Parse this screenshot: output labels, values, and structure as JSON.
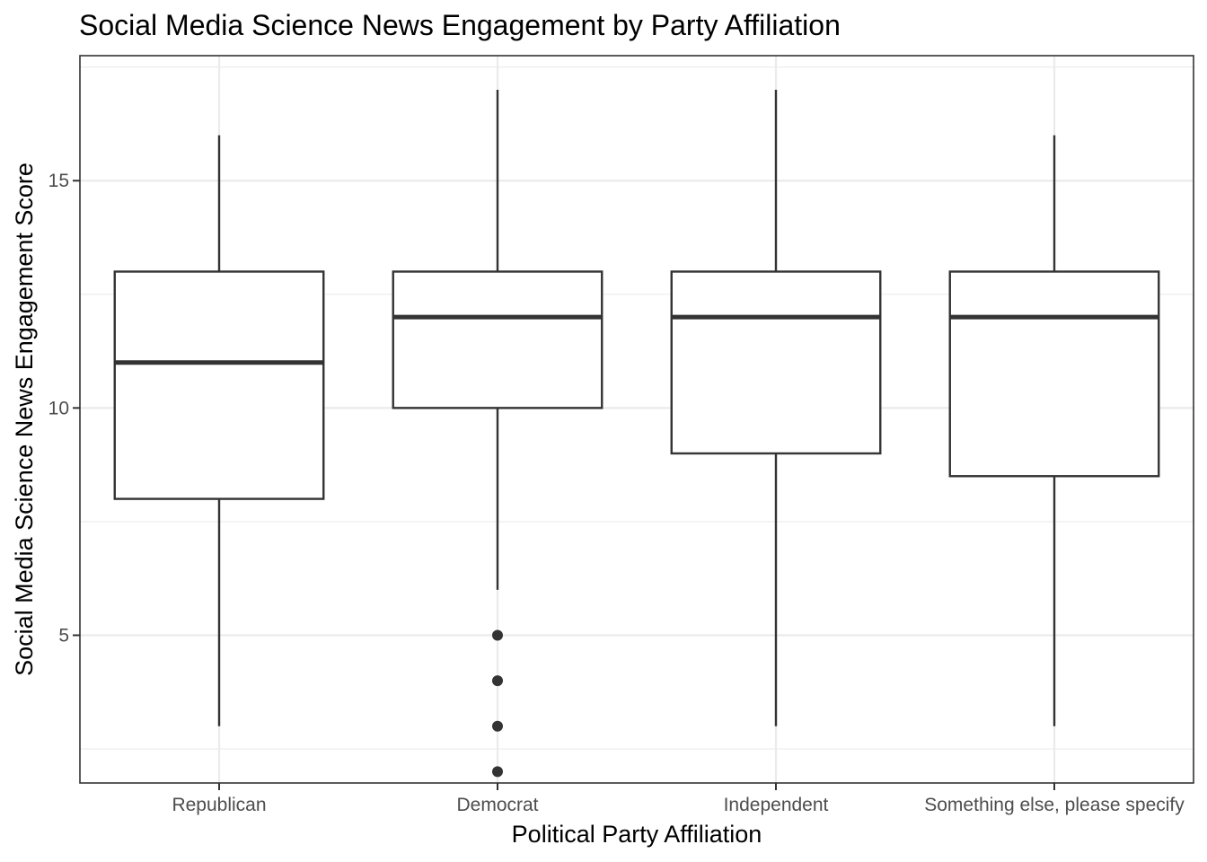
{
  "chart_data": {
    "type": "boxplot",
    "title": "Social Media Science News Engagement by Party Affiliation",
    "xlabel": "Political Party Affiliation",
    "ylabel": "Social Media Science News Engagement Score",
    "ylim": [
      1.75,
      17.75
    ],
    "yticks": [
      5,
      10,
      15
    ],
    "ytick_labels": [
      "5",
      "10",
      "15"
    ],
    "grid": true,
    "categories": [
      "Republican",
      "Democrat",
      "Independent",
      "Something else, please specify"
    ],
    "boxes": [
      {
        "category": "Republican",
        "whisker_low": 3,
        "q1": 8,
        "median": 11,
        "q3": 13,
        "whisker_high": 16,
        "outliers": []
      },
      {
        "category": "Democrat",
        "whisker_low": 6,
        "q1": 10,
        "median": 12,
        "q3": 13,
        "whisker_high": 17,
        "outliers": [
          5,
          4,
          3,
          2
        ]
      },
      {
        "category": "Independent",
        "whisker_low": 3,
        "q1": 9,
        "median": 12,
        "q3": 13,
        "whisker_high": 17,
        "outliers": []
      },
      {
        "category": "Something else, please specify",
        "whisker_low": 3,
        "q1": 8.5,
        "median": 12,
        "q3": 13,
        "whisker_high": 16,
        "outliers": []
      }
    ]
  }
}
